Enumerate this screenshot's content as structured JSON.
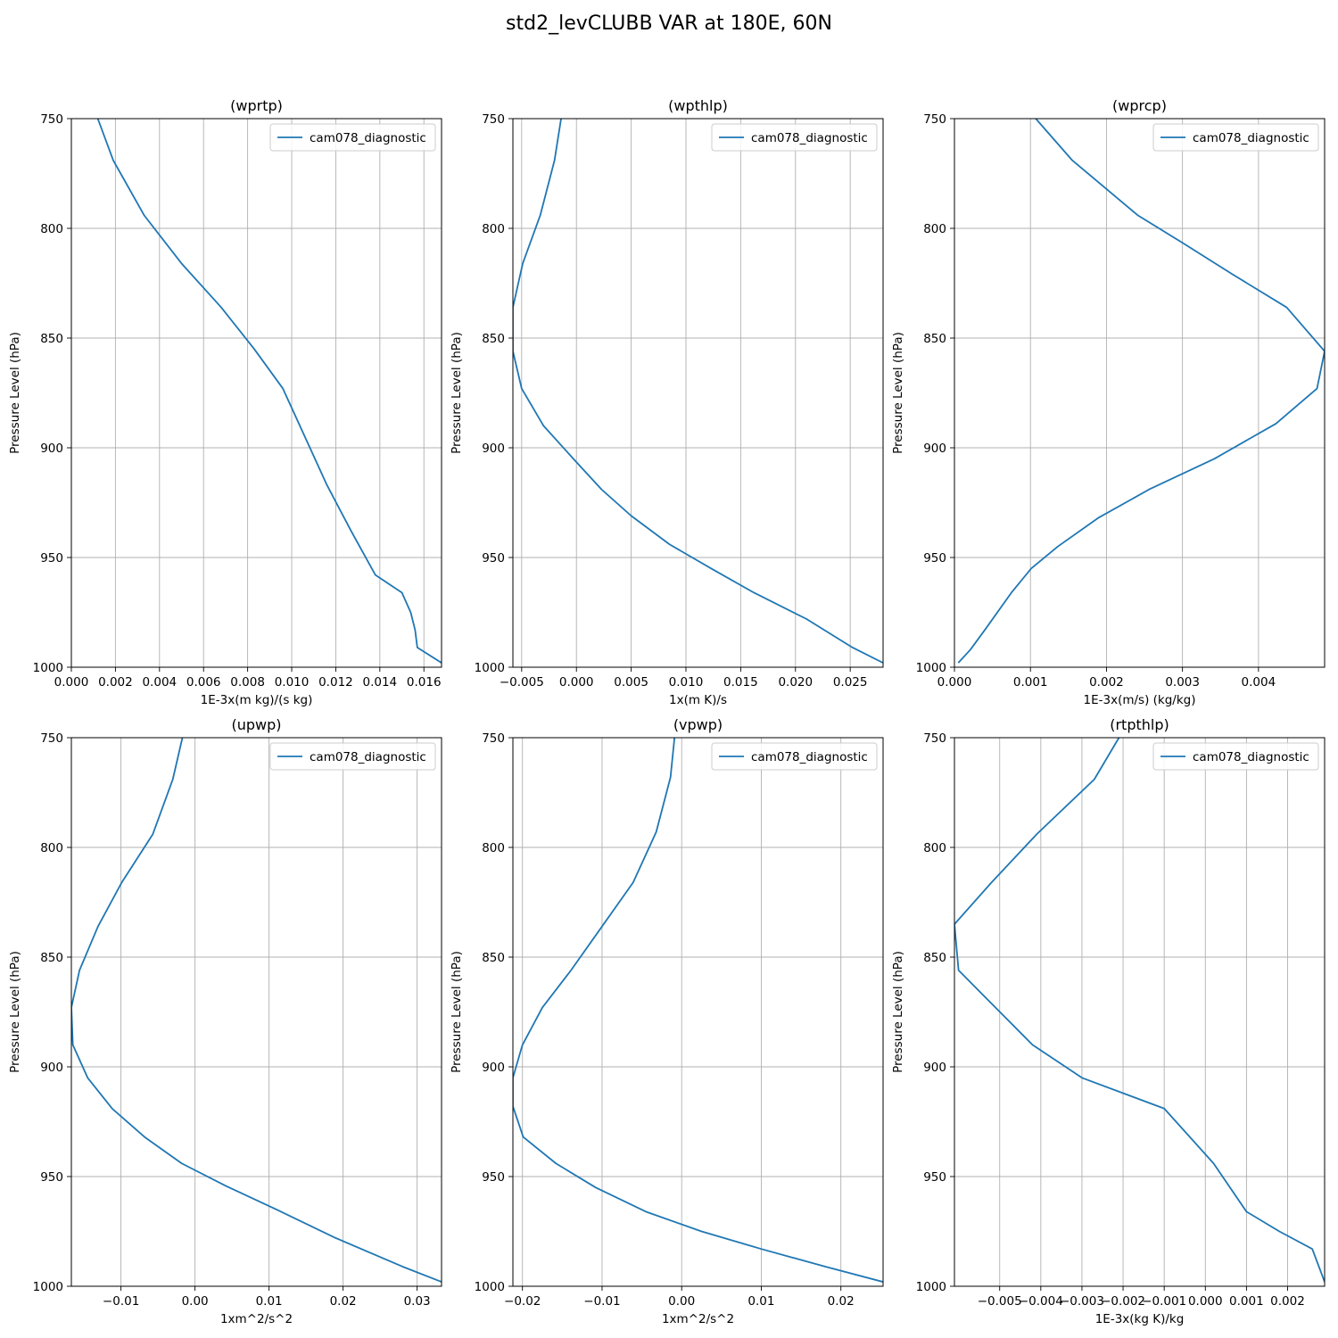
{
  "title": "std2_levCLUBB VAR at 180E, 60N",
  "chart_data": [
    {
      "type": "line",
      "title": "(wprtp)",
      "xlabel": "1E-3x(m kg)/(s kg)",
      "ylabel": "Pressure Level (hPa)",
      "xlim": [
        0,
        0.0168
      ],
      "ylim": [
        1000,
        750
      ],
      "xticks": [
        "0.000",
        "0.002",
        "0.004",
        "0.006",
        "0.008",
        "0.010",
        "0.012",
        "0.014",
        "0.016"
      ],
      "yticks": [
        "750",
        "800",
        "850",
        "900",
        "950",
        "1000"
      ],
      "grid": true,
      "legend": "top-right",
      "series": [
        {
          "name": "cam078_diagnostic",
          "x": [
            0.0012,
            0.0019,
            0.0033,
            0.005,
            0.0068,
            0.0083,
            0.0096,
            0.0106,
            0.0116,
            0.0127,
            0.0138,
            0.015,
            0.0154,
            0.0156,
            0.0157,
            0.0168
          ],
          "y": [
            750,
            769,
            794,
            816,
            836,
            855,
            873,
            895,
            917,
            938,
            958,
            966,
            975,
            983,
            991,
            998
          ]
        }
      ]
    },
    {
      "type": "line",
      "title": "(wpthlp)",
      "xlabel": "1x(m K)/s",
      "ylabel": "Pressure Level (hPa)",
      "xlim": [
        -0.0058,
        0.028
      ],
      "ylim": [
        1000,
        750
      ],
      "xticks": [
        "−0.005",
        "0.000",
        "0.005",
        "0.010",
        "0.015",
        "0.020",
        "0.025"
      ],
      "yticks": [
        "750",
        "800",
        "850",
        "900",
        "950",
        "1000"
      ],
      "grid": true,
      "legend": "top-right",
      "series": [
        {
          "name": "cam078_diagnostic",
          "x": [
            -0.0014,
            -0.002,
            -0.0033,
            -0.0049,
            -0.0058,
            -0.0058,
            -0.005,
            -0.003,
            -0.0001,
            0.0023,
            0.005,
            0.0085,
            0.0123,
            0.0162,
            0.021,
            0.0252,
            0.028
          ],
          "y": [
            750,
            769,
            794,
            816,
            836,
            856,
            873,
            890,
            906,
            919,
            931,
            944,
            955,
            966,
            978,
            991,
            998
          ]
        }
      ]
    },
    {
      "type": "line",
      "title": "(wprcp)",
      "xlabel": "1E-3x(m/s) (kg/kg)",
      "ylabel": "Pressure Level (hPa)",
      "xlim": [
        0,
        0.00487
      ],
      "ylim": [
        1000,
        750
      ],
      "xticks": [
        "0.000",
        "0.001",
        "0.002",
        "0.003",
        "0.004"
      ],
      "yticks": [
        "750",
        "800",
        "850",
        "900",
        "950",
        "1000"
      ],
      "grid": true,
      "legend": "top-right",
      "series": [
        {
          "name": "cam078_diagnostic",
          "x": [
            0.00107,
            0.00155,
            0.00241,
            0.00302,
            0.00366,
            0.00437,
            0.00487,
            0.00477,
            0.00423,
            0.00342,
            0.00256,
            0.00189,
            0.00136,
            0.00101,
            0.00075,
            0.0004,
            0.00021,
            5e-05
          ],
          "y": [
            750,
            769,
            794,
            807,
            821,
            836,
            856,
            873,
            889,
            905,
            919,
            932,
            945,
            955,
            966,
            983,
            992,
            998
          ]
        }
      ]
    },
    {
      "type": "line",
      "title": "(upwp)",
      "xlabel": "1xm^2/s^2",
      "ylabel": "Pressure Level (hPa)",
      "xlim": [
        -0.0167,
        0.0333
      ],
      "ylim": [
        1000,
        750
      ],
      "xticks": [
        "−0.01",
        "0.00",
        "0.01",
        "0.02",
        "0.03"
      ],
      "yticks": [
        "750",
        "800",
        "850",
        "900",
        "950",
        "1000"
      ],
      "grid": true,
      "legend": "top-right",
      "series": [
        {
          "name": "cam078_diagnostic",
          "x": [
            -0.0017,
            -0.003,
            -0.0057,
            -0.0099,
            -0.0131,
            -0.0156,
            -0.0167,
            -0.0165,
            -0.0145,
            -0.0112,
            -0.0068,
            -0.0018,
            0.004,
            0.011,
            0.019,
            0.028,
            0.0333
          ],
          "y": [
            750,
            769,
            794,
            816,
            836,
            856,
            873,
            890,
            905,
            919,
            932,
            944,
            954,
            965,
            978,
            991,
            998
          ]
        }
      ]
    },
    {
      "type": "line",
      "title": "(vpwp)",
      "xlabel": "1xm^2/s^2",
      "ylabel": "Pressure Level (hPa)",
      "xlim": [
        -0.0212,
        0.0253
      ],
      "ylim": [
        1000,
        750
      ],
      "xticks": [
        "−0.02",
        "−0.01",
        "0.00",
        "0.01",
        "0.02"
      ],
      "yticks": [
        "750",
        "800",
        "850",
        "900",
        "950",
        "1000"
      ],
      "grid": true,
      "legend": "top-right",
      "series": [
        {
          "name": "cam078_diagnostic",
          "x": [
            -0.0009,
            -0.0014,
            -0.0032,
            -0.0061,
            -0.01,
            -0.0139,
            -0.0175,
            -0.02,
            -0.0212,
            -0.0212,
            -0.0199,
            -0.0158,
            -0.0108,
            -0.0045,
            0.0025,
            0.01,
            0.018,
            0.0253
          ],
          "y": [
            750,
            768,
            793,
            816,
            836,
            856,
            873,
            890,
            905,
            918,
            932,
            944,
            955,
            966,
            975,
            983,
            991,
            998
          ]
        }
      ]
    },
    {
      "type": "line",
      "title": "(rtpthlp)",
      "xlabel": "1E-3x(kg K)/kg",
      "ylabel": "Pressure Level (hPa)",
      "xlim": [
        -0.0061,
        0.0029
      ],
      "ylim": [
        1000,
        750
      ],
      "xticks": [
        "−0.005",
        "−0.004",
        "−0.003",
        "−0.002",
        "−0.001",
        "0.000",
        "0.001",
        "0.002"
      ],
      "yticks": [
        "750",
        "800",
        "850",
        "900",
        "950",
        "1000"
      ],
      "grid": true,
      "legend": "top-right",
      "series": [
        {
          "name": "cam078_diagnostic",
          "x": [
            -0.0021,
            -0.0027,
            -0.0041,
            -0.0052,
            -0.0061,
            -0.006,
            -0.0051,
            -0.0042,
            -0.003,
            -0.001,
            0.0002,
            0.001,
            0.0018,
            0.0026,
            0.0029
          ],
          "y": [
            750,
            769,
            794,
            816,
            835,
            856,
            873,
            890,
            905,
            919,
            944,
            966,
            975,
            983,
            998
          ]
        }
      ]
    }
  ]
}
